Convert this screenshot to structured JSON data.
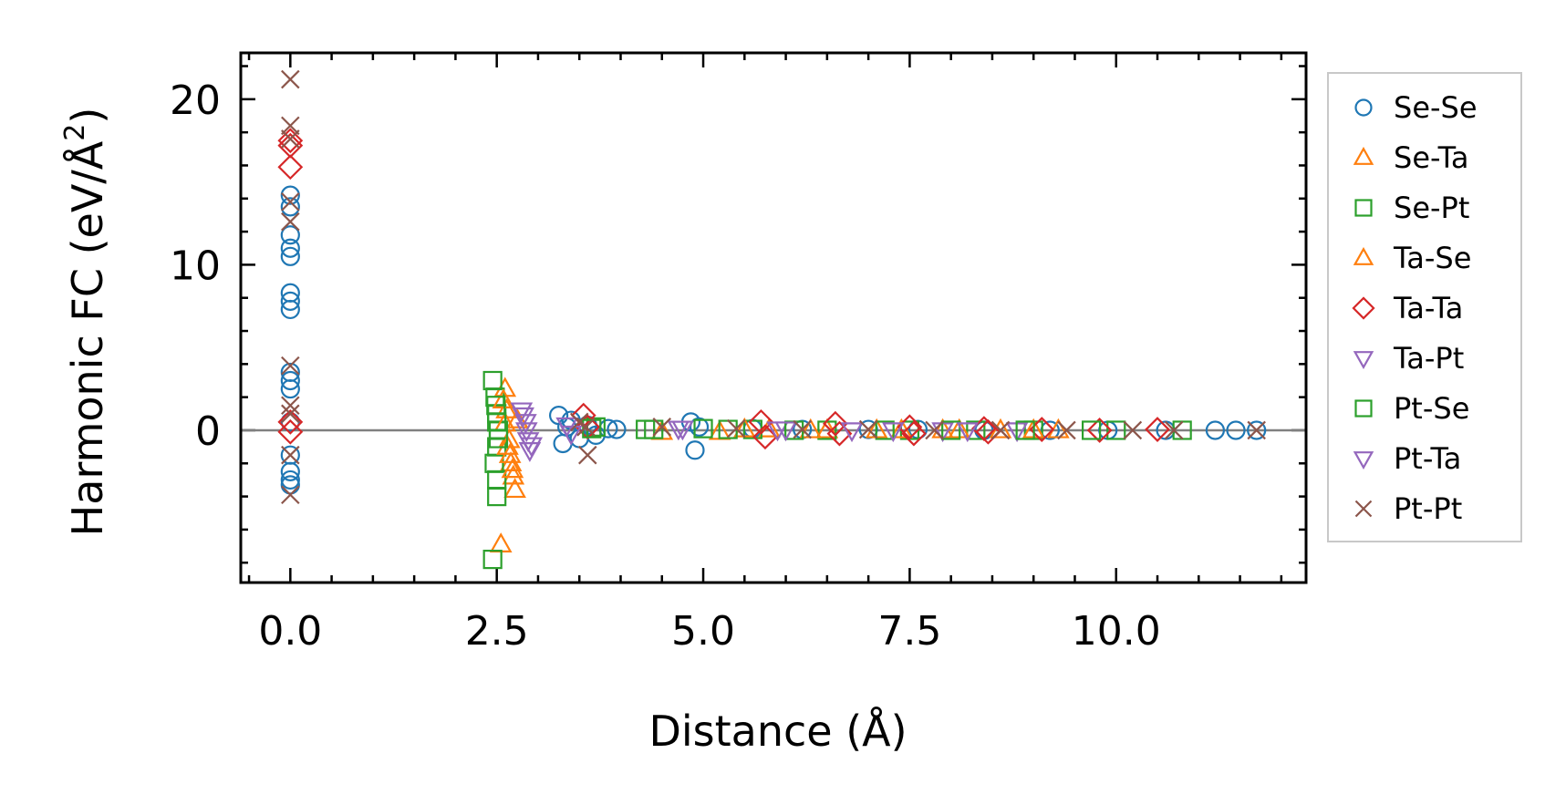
{
  "chart_data": {
    "type": "scatter",
    "title": "",
    "xlabel": "Distance (Å)",
    "ylabel": "Harmonic FC (eV/Å²)",
    "ylabel_main": "Harmonic FC (eV/Å",
    "ylabel_sup": "2",
    "ylabel_end": ")",
    "xlim": [
      -0.6,
      12.3
    ],
    "ylim": [
      -9.2,
      22.8
    ],
    "xticks": [
      0.0,
      2.5,
      5.0,
      7.5,
      10.0
    ],
    "xtick_labels": [
      "0.0",
      "2.5",
      "5.0",
      "7.5",
      "10.0"
    ],
    "yticks": [
      0,
      10,
      20
    ],
    "ytick_labels": [
      "0",
      "10",
      "20"
    ],
    "zero_line": true,
    "legend_position": "right",
    "series": [
      {
        "name": "Se-Se",
        "marker": "circle",
        "color": "#1f77b4",
        "x": [
          0,
          0,
          0,
          0,
          0,
          0,
          0,
          0,
          0,
          0,
          0,
          0,
          0,
          0,
          0,
          0,
          3.25,
          3.3,
          3.35,
          3.4,
          3.5,
          3.6,
          3.7,
          3.85,
          3.95,
          4.85,
          4.9,
          4.95,
          5.6,
          6.2,
          7.0,
          7.6,
          8.4,
          9.2,
          9.9,
          10.6,
          11.2,
          11.45,
          11.7
        ],
        "y": [
          14.2,
          13.5,
          11.8,
          11.0,
          10.5,
          8.3,
          7.8,
          7.3,
          3.5,
          3.0,
          2.5,
          -1.5,
          -2.5,
          -3.0,
          -3.3,
          0.5,
          0.9,
          -0.8,
          0.2,
          0.6,
          -0.5,
          0.3,
          -0.3,
          0.1,
          0.05,
          0.5,
          -1.2,
          0.2,
          0.1,
          0.05,
          0.05,
          0.05,
          0.0,
          0.0,
          0.0,
          0.0,
          0.0,
          0.0,
          0.0
        ]
      },
      {
        "name": "Se-Ta",
        "marker": "triangle-up",
        "color": "#ff7f0e",
        "x": [
          2.6,
          2.62,
          2.65,
          2.67,
          2.7,
          2.72,
          2.55,
          2.75,
          4.5,
          5.2,
          5.8,
          6.5,
          7.1,
          7.9,
          8.6,
          9.3
        ],
        "y": [
          2.5,
          1.2,
          -0.6,
          -2.0,
          -2.8,
          -3.6,
          -6.9,
          0.6,
          -0.1,
          -0.1,
          0.05,
          0.0,
          0.0,
          0.0,
          0.0,
          0.0
        ]
      },
      {
        "name": "Se-Pt",
        "marker": "square",
        "color": "#2ca02c",
        "x": [
          2.45,
          2.48,
          2.5,
          2.52,
          2.5,
          2.47,
          2.5,
          2.5,
          2.45,
          3.7,
          4.3,
          5.0,
          5.6,
          6.5,
          7.5,
          8.3,
          9.0,
          10.0,
          10.8
        ],
        "y": [
          3.0,
          2.0,
          1.0,
          0.0,
          -1.0,
          -2.0,
          -3.0,
          -4.0,
          -7.8,
          0.2,
          0.05,
          0.1,
          0.05,
          0.0,
          0.0,
          0.0,
          0.0,
          0.0,
          0.0
        ]
      },
      {
        "name": "Ta-Se",
        "marker": "triangle-up",
        "color": "#ff7f0e",
        "x": [
          2.58,
          2.6,
          2.63,
          2.66,
          2.69,
          5.5,
          6.3,
          7.4,
          8.1,
          9.0
        ],
        "y": [
          1.8,
          0.4,
          -1.0,
          -1.5,
          -2.4,
          0.05,
          0.0,
          0.0,
          0.0,
          0.0
        ]
      },
      {
        "name": "Ta-Ta",
        "marker": "diamond",
        "color": "#d62728",
        "x": [
          0,
          0,
          0,
          0,
          0,
          3.55,
          3.6,
          5.7,
          5.75,
          6.6,
          6.65,
          7.5,
          7.55,
          8.4,
          8.45,
          9.1,
          9.8,
          10.5
        ],
        "y": [
          17.5,
          17.2,
          15.9,
          0.5,
          -0.1,
          0.9,
          0.2,
          0.5,
          -0.4,
          0.4,
          -0.2,
          0.2,
          -0.2,
          0.1,
          -0.1,
          0.05,
          0.0,
          0.05
        ]
      },
      {
        "name": "Ta-Pt",
        "marker": "triangle-down",
        "color": "#9467bd",
        "x": [
          2.8,
          2.85,
          2.88,
          2.9,
          2.82,
          3.35,
          3.4,
          4.7,
          5.9,
          6.8,
          7.9,
          8.8
        ],
        "y": [
          1.2,
          0.5,
          -0.6,
          -1.2,
          0.9,
          0.3,
          -0.2,
          0.1,
          0.05,
          0.0,
          0.0,
          0.0
        ]
      },
      {
        "name": "Pt-Se",
        "marker": "square",
        "color": "#2ca02c",
        "x": [
          2.5,
          2.52,
          2.49,
          3.65,
          4.4,
          5.3,
          6.1,
          7.2,
          8.0,
          8.9,
          9.7
        ],
        "y": [
          0.5,
          -0.5,
          1.5,
          0.1,
          0.05,
          0.05,
          0.0,
          0.0,
          0.0,
          0.0,
          0.0
        ]
      },
      {
        "name": "Pt-Ta",
        "marker": "triangle-down",
        "color": "#9467bd",
        "x": [
          2.86,
          2.92,
          4.75,
          6.0,
          7.3,
          8.2
        ],
        "y": [
          0.0,
          -0.9,
          0.1,
          0.05,
          0.0,
          0.0
        ]
      },
      {
        "name": "Pt-Pt",
        "marker": "x",
        "color": "#8c564b",
        "x": [
          0,
          0,
          0,
          0,
          0,
          0,
          0,
          0,
          0,
          0,
          3.5,
          3.6,
          3.58,
          4.5,
          5.4,
          6.2,
          7.0,
          7.8,
          8.6,
          9.4,
          10.2,
          10.7,
          11.7
        ],
        "y": [
          21.2,
          18.4,
          17.6,
          13.8,
          12.6,
          3.9,
          1.5,
          1.0,
          -1.5,
          -3.9,
          0.5,
          -1.5,
          0.2,
          0.2,
          0.1,
          0.05,
          0.05,
          0.0,
          0.0,
          0.0,
          0.0,
          0.0,
          0.0
        ]
      }
    ]
  }
}
